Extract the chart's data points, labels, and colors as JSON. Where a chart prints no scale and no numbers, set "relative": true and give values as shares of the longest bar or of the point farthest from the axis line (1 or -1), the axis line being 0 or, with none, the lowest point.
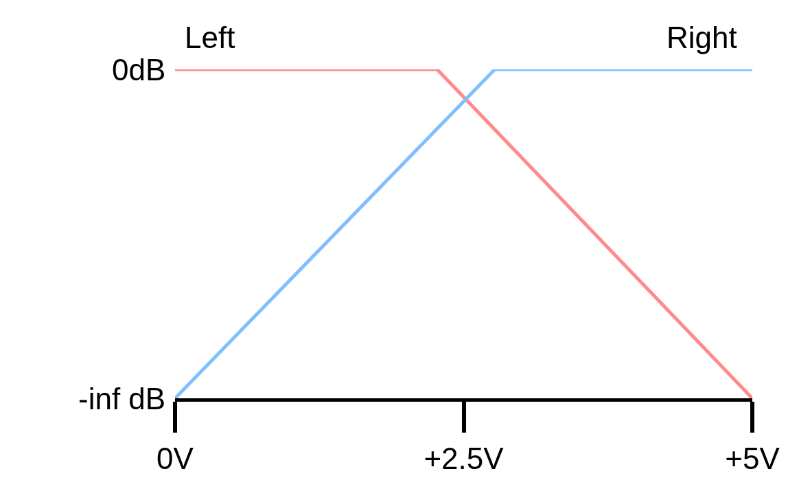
{
  "chart_data": {
    "type": "line",
    "relative": true,
    "series": [
      {
        "name": "Left",
        "color": "#ff8a8a",
        "x": [
          0,
          2.27,
          5
        ],
        "values": [
          1,
          1,
          0
        ]
      },
      {
        "name": "Right",
        "color": "#80bfff",
        "x": [
          0,
          2.77,
          5
        ],
        "values": [
          0,
          1,
          1
        ]
      }
    ],
    "xlim": [
      0,
      5
    ],
    "xticks": [
      {
        "value": 0,
        "label": "0V"
      },
      {
        "value": 2.5,
        "label": "+2.5V"
      },
      {
        "value": 5,
        "label": "+5V"
      }
    ],
    "annotations": [
      {
        "text": "0dB",
        "x": 0,
        "y": 1
      },
      {
        "text": "-inf dB",
        "x": 0,
        "y": 0
      }
    ],
    "legend": false,
    "marker": "none",
    "line_style": "solid"
  }
}
